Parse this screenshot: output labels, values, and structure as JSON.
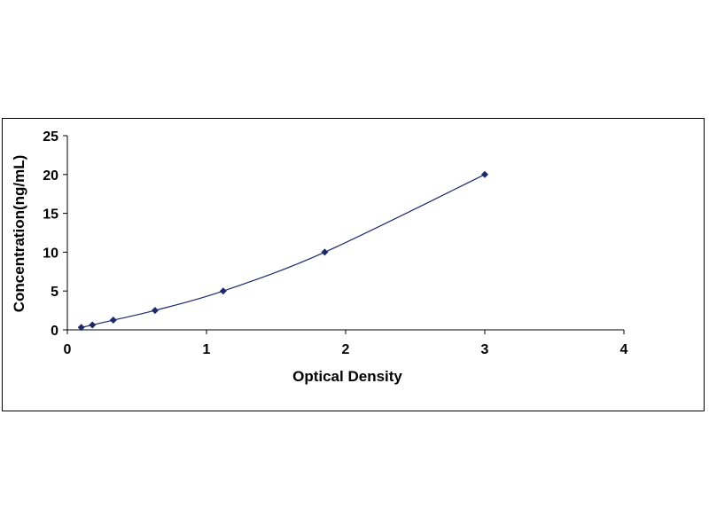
{
  "chart_data": {
    "type": "scatter",
    "title": "",
    "xlabel": "Optical Density",
    "ylabel": "Concentration(ng/mL)",
    "xlim": [
      0,
      4
    ],
    "ylim": [
      0,
      25
    ],
    "x_ticks": [
      "0",
      "1",
      "2",
      "3",
      "4"
    ],
    "y_ticks": [
      "0",
      "5",
      "10",
      "15",
      "20",
      "25"
    ],
    "grid": false,
    "legend": "none",
    "points": [
      {
        "x": 0.1,
        "y": 0.31
      },
      {
        "x": 0.18,
        "y": 0.63
      },
      {
        "x": 0.33,
        "y": 1.25
      },
      {
        "x": 0.63,
        "y": 2.5
      },
      {
        "x": 1.12,
        "y": 5
      },
      {
        "x": 1.85,
        "y": 10
      },
      {
        "x": 3.0,
        "y": 20
      }
    ],
    "fit_line": true,
    "colors": {
      "marker": "#1c2a6b",
      "line": "#1c2a6b",
      "axis": "#000000"
    }
  }
}
